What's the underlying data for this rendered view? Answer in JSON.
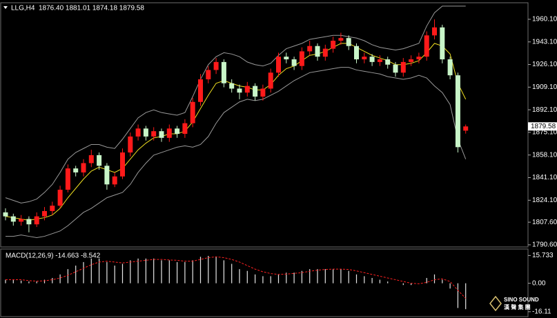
{
  "header": {
    "symbol": "LLG,H4",
    "ohlc": "1876.40 1881.01 1874.18 1879.58"
  },
  "brand": {
    "name": "SINO SOUND",
    "subtitle": "漢 聲 集 團"
  },
  "chart_data": [
    {
      "type": "candlestick",
      "up_color": "#ff1a1a",
      "down_color": "#c8f5c8",
      "open": [
        1815,
        1812,
        1808,
        1810,
        1806,
        1812,
        1816,
        1820,
        1832,
        1848,
        1845,
        1852,
        1858,
        1850,
        1836,
        1842,
        1860,
        1872,
        1878,
        1872,
        1876,
        1871,
        1878,
        1874,
        1882,
        1898,
        1915,
        1922,
        1928,
        1912,
        1908,
        1905,
        1910,
        1902,
        1908,
        1920,
        1932,
        1930,
        1925,
        1936,
        1940,
        1932,
        1938,
        1944,
        1946,
        1940,
        1930,
        1932,
        1928,
        1930,
        1926,
        1920,
        1928,
        1930,
        1932,
        1948,
        1954,
        1930,
        1918,
        1876.4
      ],
      "high": [
        1818,
        1814,
        1813,
        1812,
        1815,
        1819,
        1823,
        1835,
        1851,
        1850,
        1855,
        1862,
        1860,
        1852,
        1845,
        1863,
        1875,
        1881,
        1880,
        1879,
        1878,
        1881,
        1880,
        1885,
        1901,
        1919,
        1925,
        1931,
        1930,
        1915,
        1911,
        1913,
        1912,
        1911,
        1923,
        1935,
        1935,
        1932,
        1939,
        1944,
        1942,
        1941,
        1947,
        1950,
        1948,
        1942,
        1935,
        1934,
        1933,
        1932,
        1928,
        1931,
        1933,
        1935,
        1951,
        1960,
        1956,
        1932,
        1920,
        1881.01
      ],
      "low": [
        1809,
        1805,
        1805,
        1800,
        1804,
        1809,
        1813,
        1818,
        1830,
        1842,
        1842,
        1849,
        1847,
        1832,
        1834,
        1840,
        1857,
        1869,
        1869,
        1869,
        1868,
        1868,
        1871,
        1871,
        1879,
        1895,
        1912,
        1919,
        1909,
        1905,
        1900,
        1902,
        1899,
        1899,
        1905,
        1917,
        1927,
        1922,
        1922,
        1933,
        1929,
        1929,
        1935,
        1941,
        1937,
        1927,
        1927,
        1925,
        1925,
        1923,
        1917,
        1917,
        1925,
        1927,
        1929,
        1945,
        1927,
        1915,
        1860,
        1874.18
      ],
      "close": [
        1812,
        1808,
        1810,
        1806,
        1812,
        1816,
        1820,
        1832,
        1848,
        1845,
        1852,
        1858,
        1850,
        1836,
        1842,
        1860,
        1872,
        1878,
        1872,
        1876,
        1871,
        1878,
        1874,
        1882,
        1898,
        1915,
        1922,
        1928,
        1912,
        1908,
        1905,
        1910,
        1902,
        1908,
        1920,
        1932,
        1930,
        1925,
        1936,
        1940,
        1932,
        1938,
        1944,
        1946,
        1940,
        1930,
        1932,
        1928,
        1930,
        1926,
        1920,
        1928,
        1930,
        1932,
        1948,
        1954,
        1930,
        1918,
        1864,
        1879.58
      ],
      "overlays": [
        {
          "color": "#9a9a9a",
          "values": [
            1826,
            1824,
            1822,
            1823,
            1825,
            1830,
            1836,
            1845,
            1855,
            1860,
            1863,
            1866,
            1866,
            1864,
            1863,
            1870,
            1878,
            1886,
            1890,
            1892,
            1890,
            1889,
            1888,
            1890,
            1902,
            1915,
            1926,
            1932,
            1935,
            1934,
            1932,
            1928,
            1926,
            1925,
            1927,
            1933,
            1938,
            1940,
            1942,
            1945,
            1946,
            1947,
            1948,
            1948,
            1947,
            1946,
            1944,
            1941,
            1939,
            1938,
            1937,
            1938,
            1940,
            1942,
            1955,
            1965,
            1970,
            1970,
            1970,
            1970
          ]
        },
        {
          "color": "#9a9a9a",
          "values": [
            1797,
            1797,
            1798,
            1797,
            1796,
            1797,
            1799,
            1801,
            1805,
            1810,
            1815,
            1818,
            1822,
            1826,
            1828,
            1830,
            1836,
            1845,
            1852,
            1858,
            1860,
            1862,
            1864,
            1865,
            1864,
            1866,
            1872,
            1882,
            1890,
            1894,
            1898,
            1900,
            1899,
            1900,
            1903,
            1906,
            1910,
            1914,
            1917,
            1920,
            1921,
            1922,
            1923,
            1924,
            1924,
            1922,
            1921,
            1920,
            1919,
            1917,
            1916,
            1915,
            1916,
            1918,
            1916,
            1910,
            1905,
            1896,
            1870,
            1855
          ]
        },
        {
          "color": "#f0e020",
          "values": [
            1812,
            1811,
            1810,
            1809,
            1810,
            1811,
            1813,
            1818,
            1826,
            1833,
            1840,
            1846,
            1849,
            1847,
            1845,
            1848,
            1855,
            1862,
            1867,
            1871,
            1872,
            1874,
            1874,
            1876,
            1883,
            1893,
            1903,
            1912,
            1914,
            1912,
            1910,
            1909,
            1907,
            1907,
            1911,
            1918,
            1923,
            1925,
            1929,
            1933,
            1934,
            1936,
            1939,
            1942,
            1942,
            1939,
            1936,
            1933,
            1931,
            1929,
            1926,
            1926,
            1927,
            1929,
            1935,
            1942,
            1940,
            1934,
            1912,
            1900
          ]
        }
      ],
      "ylim": [
        1789,
        1972
      ],
      "yticks": [
        {
          "value": 1960.1,
          "label": "1960.10"
        },
        {
          "value": 1943.1,
          "label": "1943.10"
        },
        {
          "value": 1926.1,
          "label": "1926.10"
        },
        {
          "value": 1909.1,
          "label": "1909.10"
        },
        {
          "value": 1892.1,
          "label": "1892.10"
        },
        {
          "value": 1875.1,
          "label": "1875.10"
        },
        {
          "value": 1858.1,
          "label": "1858.10"
        },
        {
          "value": 1841.1,
          "label": "1841.10"
        },
        {
          "value": 1824.1,
          "label": "1824.10"
        },
        {
          "value": 1807.6,
          "label": "1807.60"
        },
        {
          "value": 1790.6,
          "label": "1790.60"
        }
      ],
      "price_marker": {
        "value": 1879.58,
        "label": "1879.58"
      }
    },
    {
      "type": "macd",
      "title": "MACD(12,26,9) -14.663 -8.542",
      "series": [
        {
          "color": "#e8e8e8",
          "values": [
            2,
            2,
            1.5,
            1,
            1,
            2,
            3,
            5,
            8,
            10,
            12,
            14,
            14,
            12,
            10,
            11,
            13,
            14,
            14,
            14,
            13,
            13,
            12,
            12,
            13,
            15,
            15.5,
            15,
            13,
            11,
            8,
            7,
            5,
            4,
            4,
            5,
            6,
            6,
            7,
            8,
            8,
            8,
            8,
            8,
            7,
            5,
            4,
            3,
            2,
            1,
            0,
            -1,
            -1,
            0,
            3,
            5,
            2,
            -3,
            -14,
            -14.663
          ]
        },
        {
          "color": "#ff2020",
          "values": [
            2,
            2,
            2,
            1.5,
            1.2,
            1.4,
            2,
            3,
            4.5,
            6.5,
            8.5,
            10.5,
            12,
            12.5,
            12,
            11.5,
            12,
            12.5,
            13,
            13.5,
            13.5,
            13.2,
            13,
            12.5,
            12.5,
            13.5,
            14.5,
            15,
            14.5,
            13.5,
            12,
            10,
            8,
            6.5,
            5.5,
            5,
            5.2,
            5.6,
            6,
            6.8,
            7.4,
            7.8,
            8,
            8,
            7.8,
            7,
            6,
            5,
            4,
            3,
            2,
            1,
            0,
            -0.3,
            0.5,
            2,
            2.5,
            1,
            -4,
            -8.542
          ]
        }
      ],
      "ylim": [
        -18.5,
        19
      ],
      "yticks": [
        15.733,
        {
          "value": 0,
          "label": "0.00"
        },
        -16.11
      ]
    }
  ]
}
